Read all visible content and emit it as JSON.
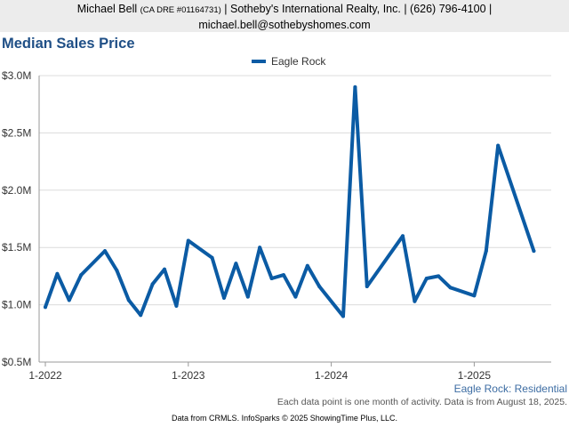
{
  "header": {
    "agent_name": "Michael Bell",
    "license": "(CA DRE #01164731)",
    "rest_line1": "| Sotheby's International Realty, Inc. | (626) 796-4100 |",
    "email": "michael.bell@sothebyshomes.com"
  },
  "series_caption": "Eagle Rock: Residential",
  "note": "Each data point is one month of activity. Data is from August 18, 2025.",
  "footer": "Data from CRMLS. InfoSparks © 2025 ShowingTime Plus, LLC.",
  "colors": {
    "line": "#0b5ba4",
    "title": "#1f4f86",
    "grid": "#dcdcdc"
  },
  "chart_data": {
    "type": "line",
    "title": "Median Sales Price",
    "legend": "top-center",
    "grid": true,
    "x_ticks": [
      "1-2022",
      "1-2023",
      "1-2024",
      "1-2025"
    ],
    "y_ticks": [
      "$0.5M",
      "$1.0M",
      "$1.5M",
      "$2.0M",
      "$2.5M",
      "$3.0M"
    ],
    "ylim": [
      0.5,
      3.0
    ],
    "series": [
      {
        "name": "Eagle Rock",
        "x": [
          "2022-01",
          "2022-02",
          "2022-03",
          "2022-04",
          "2022-06",
          "2022-07",
          "2022-08",
          "2022-09",
          "2022-10",
          "2022-11",
          "2022-12",
          "2023-01",
          "2023-03",
          "2023-04",
          "2023-05",
          "2023-06",
          "2023-07",
          "2023-08",
          "2023-09",
          "2023-10",
          "2023-11",
          "2023-12",
          "2024-02",
          "2024-03",
          "2024-04",
          "2024-07",
          "2024-08",
          "2024-09",
          "2024-10",
          "2024-11",
          "2025-01",
          "2025-02",
          "2025-03",
          "2025-06"
        ],
        "values": [
          0.98,
          1.27,
          1.04,
          1.26,
          1.47,
          1.3,
          1.04,
          0.91,
          1.18,
          1.31,
          0.99,
          1.56,
          1.41,
          1.06,
          1.36,
          1.07,
          1.5,
          1.23,
          1.26,
          1.07,
          1.34,
          1.16,
          0.9,
          2.9,
          1.16,
          1.6,
          1.03,
          1.23,
          1.25,
          1.15,
          1.08,
          1.47,
          2.39,
          1.47
        ]
      }
    ]
  }
}
